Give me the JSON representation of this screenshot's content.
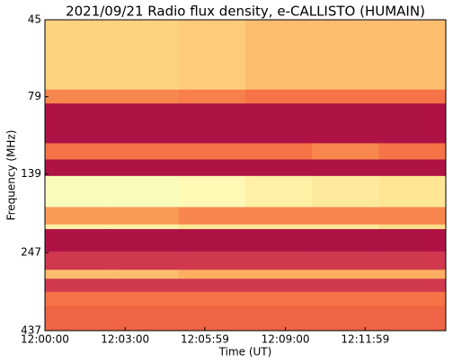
{
  "chart_data": {
    "type": "heatmap",
    "title": "2021/09/21  Radio flux density, e-CALLISTO (HUMAIN)",
    "xlabel": "Time (UT)",
    "ylabel": "Frequency (MHz)",
    "xlim": [
      "12:00:00",
      "12:15:00"
    ],
    "xticks": [
      "12:00:00",
      "12:03:00",
      "12:05:59",
      "12:09:00",
      "12:11:59"
    ],
    "ylim": [
      45,
      437
    ],
    "yscale": "log",
    "yinverted": true,
    "yticks": [
      45,
      79,
      139,
      247,
      437
    ],
    "time_edges": [
      "12:00:00",
      "12:02:30",
      "12:05:00",
      "12:07:30",
      "12:10:00",
      "12:12:30",
      "12:15:00"
    ],
    "freq_edges": [
      45,
      75,
      83,
      111,
      125,
      141,
      177,
      201,
      208,
      245,
      280,
      299,
      329,
      364,
      437
    ],
    "z": [
      [
        0.62,
        0.62,
        0.6,
        0.55,
        0.55,
        0.55
      ],
      [
        0.4,
        0.4,
        0.38,
        0.35,
        0.35,
        0.35
      ],
      [
        0.05,
        0.05,
        0.05,
        0.05,
        0.05,
        0.05
      ],
      [
        0.35,
        0.35,
        0.35,
        0.35,
        0.4,
        0.35
      ],
      [
        0.05,
        0.05,
        0.05,
        0.05,
        0.05,
        0.05
      ],
      [
        0.85,
        0.85,
        0.8,
        0.75,
        0.72,
        0.7
      ],
      [
        0.45,
        0.45,
        0.4,
        0.4,
        0.4,
        0.4
      ],
      [
        0.75,
        0.75,
        0.7,
        0.7,
        0.7,
        0.65
      ],
      [
        0.05,
        0.05,
        0.05,
        0.05,
        0.05,
        0.05
      ],
      [
        0.15,
        0.15,
        0.15,
        0.15,
        0.15,
        0.15
      ],
      [
        0.55,
        0.55,
        0.5,
        0.5,
        0.5,
        0.5
      ],
      [
        0.15,
        0.15,
        0.15,
        0.15,
        0.15,
        0.15
      ],
      [
        0.35,
        0.35,
        0.35,
        0.35,
        0.35,
        0.35
      ],
      [
        0.3,
        0.3,
        0.3,
        0.3,
        0.3,
        0.3
      ]
    ],
    "zlim": [
      0,
      1
    ],
    "colormap": [
      "#9e0142",
      "#d53e4f",
      "#f46d43",
      "#fdae61",
      "#fee08b",
      "#ffffbf",
      "#abdda4"
    ]
  }
}
